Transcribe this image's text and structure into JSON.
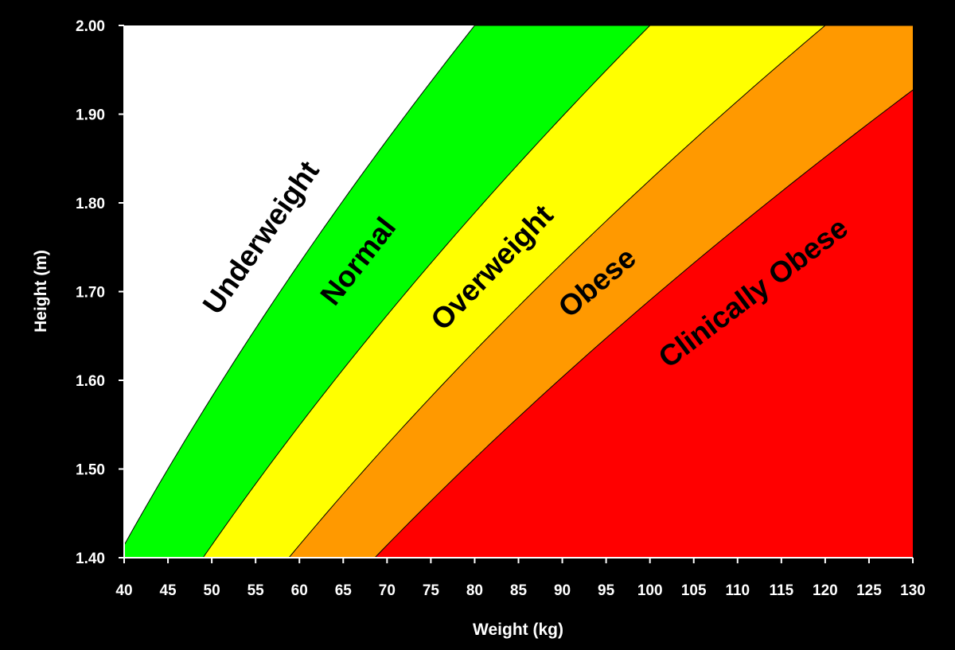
{
  "chart_data": {
    "type": "area",
    "xlabel": "Weight (kg)",
    "ylabel": "Height (m)",
    "xlim": [
      40,
      130
    ],
    "ylim": [
      1.4,
      2.0
    ],
    "x_ticks": [
      "40",
      "45",
      "50",
      "55",
      "60",
      "65",
      "70",
      "75",
      "80",
      "85",
      "90",
      "95",
      "100",
      "105",
      "110",
      "115",
      "120",
      "125",
      "130"
    ],
    "y_ticks": [
      "1.40",
      "1.50",
      "1.60",
      "1.70",
      "1.80",
      "1.90",
      "2.00"
    ],
    "grid": false,
    "zone_boundaries_bmi": [
      20,
      25,
      30,
      35
    ],
    "zones": [
      {
        "label": "Underweight",
        "bmi_min": 0,
        "bmi_max": 20,
        "color": "#ffffff"
      },
      {
        "label": "Normal",
        "bmi_min": 20,
        "bmi_max": 25,
        "color": "#00ff00"
      },
      {
        "label": "Overweight",
        "bmi_min": 25,
        "bmi_max": 30,
        "color": "#ffff00"
      },
      {
        "label": "Obese",
        "bmi_min": 30,
        "bmi_max": 35,
        "color": "#ff9900"
      },
      {
        "label": "Clinically Obese",
        "bmi_min": 35,
        "bmi_max": 999,
        "color": "#ff0000"
      }
    ]
  },
  "colors": {
    "background": "#000000",
    "axis_text": "#ffffff"
  }
}
